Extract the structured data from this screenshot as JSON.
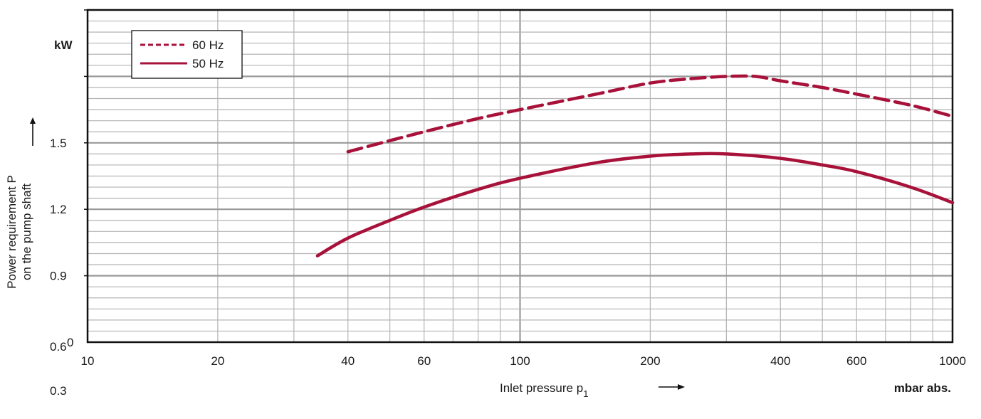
{
  "chart_data": {
    "type": "line",
    "x_scale": "log",
    "xlim": [
      10,
      1000
    ],
    "ylim": [
      0.6,
      2.1
    ],
    "x_ticks": [
      10,
      20,
      40,
      60,
      100,
      200,
      400,
      600,
      1000
    ],
    "x_tick_labels": [
      "10",
      "20",
      "40",
      "60",
      "100",
      "200",
      "400",
      "600",
      "1000"
    ],
    "y_ticks": [
      0.9,
      1.2,
      1.5
    ],
    "y_tick_labels": [
      "0.9",
      "1.2",
      "1.5"
    ],
    "y_origin_label": "0.6",
    "y_origin_extra": "0",
    "y_stray_label": "0.3",
    "xlabel": "Inlet pressure p",
    "xlabel_sub": "1",
    "x_unit": "mbar abs.",
    "ylabel_lines": [
      "Power requirement P",
      "on the pump shaft"
    ],
    "y_unit": "kW",
    "grid": true,
    "legend_position": "top-left",
    "series": [
      {
        "name": "60 Hz",
        "style": "dashed",
        "color": "#a8123a",
        "x": [
          40,
          50,
          60,
          80,
          100,
          150,
          200,
          250,
          300,
          350,
          400,
          500,
          600,
          800,
          1000
        ],
        "y": [
          1.46,
          1.51,
          1.55,
          1.61,
          1.65,
          1.72,
          1.77,
          1.79,
          1.8,
          1.8,
          1.78,
          1.75,
          1.72,
          1.67,
          1.62
        ]
      },
      {
        "name": "50 Hz",
        "style": "solid",
        "color": "#a8123a",
        "x": [
          34,
          40,
          50,
          60,
          80,
          100,
          150,
          200,
          250,
          300,
          400,
          500,
          600,
          800,
          1000
        ],
        "y": [
          0.99,
          1.07,
          1.15,
          1.21,
          1.29,
          1.34,
          1.41,
          1.44,
          1.45,
          1.45,
          1.43,
          1.4,
          1.37,
          1.3,
          1.23
        ]
      }
    ]
  }
}
